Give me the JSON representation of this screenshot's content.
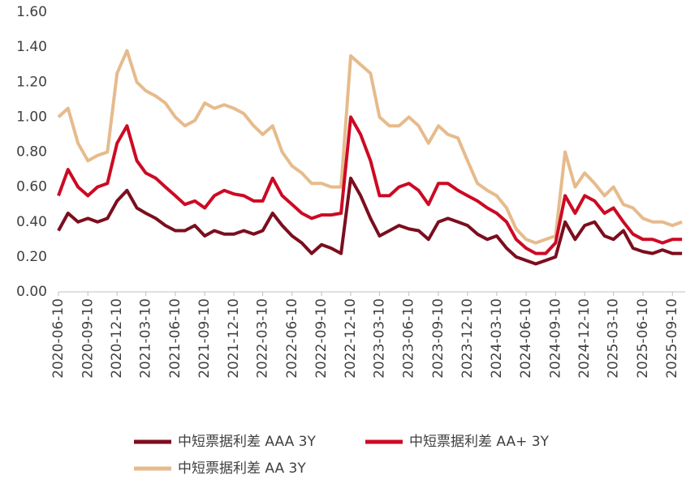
{
  "chart_data": {
    "type": "line",
    "x": [
      "2020-06-10",
      "2020-07-10",
      "2020-08-10",
      "2020-09-10",
      "2020-10-10",
      "2020-11-10",
      "2020-12-10",
      "2021-01-10",
      "2021-02-10",
      "2021-03-10",
      "2021-04-10",
      "2021-05-10",
      "2021-06-10",
      "2021-07-10",
      "2021-08-10",
      "2021-09-10",
      "2021-10-10",
      "2021-11-10",
      "2021-12-10",
      "2022-01-10",
      "2022-02-10",
      "2022-03-10",
      "2022-04-10",
      "2022-05-10",
      "2022-06-10",
      "2022-07-10",
      "2022-08-10",
      "2022-09-10",
      "2022-10-10",
      "2022-11-10",
      "2022-12-10",
      "2023-01-10",
      "2023-02-10",
      "2023-03-10",
      "2023-04-10",
      "2023-05-10",
      "2023-06-10",
      "2023-07-10",
      "2023-08-10",
      "2023-09-10",
      "2023-10-10",
      "2023-11-10",
      "2023-12-10",
      "2024-01-10",
      "2024-02-10",
      "2024-03-10",
      "2024-04-10",
      "2024-05-10",
      "2024-06-10",
      "2024-07-10",
      "2024-08-10",
      "2024-09-10",
      "2024-10-10",
      "2024-11-10",
      "2024-12-10",
      "2025-01-10",
      "2025-02-10",
      "2025-03-10",
      "2025-04-10",
      "2025-05-10",
      "2025-06-10",
      "2025-07-10",
      "2025-08-10",
      "2025-09-10",
      "2025-10-10"
    ],
    "series": [
      {
        "name": "中短票据利差 AAA 3Y",
        "color": "#7b0e1e",
        "values": [
          0.35,
          0.45,
          0.4,
          0.42,
          0.4,
          0.42,
          0.52,
          0.58,
          0.48,
          0.45,
          0.42,
          0.38,
          0.35,
          0.35,
          0.38,
          0.32,
          0.35,
          0.33,
          0.33,
          0.35,
          0.33,
          0.35,
          0.45,
          0.38,
          0.32,
          0.28,
          0.22,
          0.27,
          0.25,
          0.22,
          0.65,
          0.55,
          0.42,
          0.32,
          0.35,
          0.38,
          0.36,
          0.35,
          0.3,
          0.4,
          0.42,
          0.4,
          0.38,
          0.33,
          0.3,
          0.32,
          0.25,
          0.2,
          0.18,
          0.16,
          0.18,
          0.2,
          0.4,
          0.3,
          0.38,
          0.4,
          0.32,
          0.3,
          0.35,
          0.25,
          0.23,
          0.22,
          0.24,
          0.22,
          0.22
        ]
      },
      {
        "name": "中短票据利差 AA+ 3Y",
        "color": "#cc0a24",
        "values": [
          0.55,
          0.7,
          0.6,
          0.55,
          0.6,
          0.62,
          0.85,
          0.95,
          0.75,
          0.68,
          0.65,
          0.6,
          0.55,
          0.5,
          0.52,
          0.48,
          0.55,
          0.58,
          0.56,
          0.55,
          0.52,
          0.52,
          0.65,
          0.55,
          0.5,
          0.45,
          0.42,
          0.44,
          0.44,
          0.45,
          1.0,
          0.9,
          0.75,
          0.55,
          0.55,
          0.6,
          0.62,
          0.58,
          0.5,
          0.62,
          0.62,
          0.58,
          0.55,
          0.52,
          0.48,
          0.45,
          0.4,
          0.3,
          0.25,
          0.22,
          0.22,
          0.28,
          0.55,
          0.45,
          0.55,
          0.52,
          0.45,
          0.48,
          0.4,
          0.33,
          0.3,
          0.3,
          0.28,
          0.3,
          0.3
        ]
      },
      {
        "name": "中短票据利差 AA 3Y",
        "color": "#e6bb8c",
        "values": [
          1.0,
          1.05,
          0.85,
          0.75,
          0.78,
          0.8,
          1.25,
          1.38,
          1.2,
          1.15,
          1.12,
          1.08,
          1.0,
          0.95,
          0.98,
          1.08,
          1.05,
          1.07,
          1.05,
          1.02,
          0.95,
          0.9,
          0.95,
          0.8,
          0.72,
          0.68,
          0.62,
          0.62,
          0.6,
          0.6,
          1.35,
          1.3,
          1.25,
          1.0,
          0.95,
          0.95,
          1.0,
          0.95,
          0.85,
          0.95,
          0.9,
          0.88,
          0.75,
          0.62,
          0.58,
          0.55,
          0.48,
          0.36,
          0.3,
          0.28,
          0.3,
          0.32,
          0.8,
          0.6,
          0.68,
          0.62,
          0.55,
          0.6,
          0.5,
          0.48,
          0.42,
          0.4,
          0.4,
          0.38,
          0.4
        ]
      }
    ],
    "xlim": [
      "2020-06-10",
      "2025-10-20"
    ],
    "xticks": [
      "2020-06-10",
      "2020-09-10",
      "2020-12-10",
      "2021-03-10",
      "2021-06-10",
      "2021-09-10",
      "2021-12-10",
      "2022-03-10",
      "2022-06-10",
      "2022-09-10",
      "2022-12-10",
      "2023-03-10",
      "2023-06-10",
      "2023-09-10",
      "2023-12-10",
      "2024-03-10",
      "2024-06-10",
      "2024-09-10",
      "2024-12-10",
      "2025-03-10",
      "2025-06-10",
      "2025-09-10"
    ],
    "ylim": [
      0,
      1.6
    ],
    "yticks": [
      {
        "value": 0,
        "label": "0.00"
      },
      {
        "value": 0.2,
        "label": "0.20"
      },
      {
        "value": 0.4,
        "label": "0.40"
      },
      {
        "value": 0.6,
        "label": "0.60"
      },
      {
        "value": 0.8,
        "label": "0.80"
      },
      {
        "value": 1.0,
        "label": "1.00"
      },
      {
        "value": 1.2,
        "label": "1.20"
      },
      {
        "value": 1.4,
        "label": "1.40"
      },
      {
        "value": 1.6,
        "label": "1.60"
      }
    ],
    "legend": "bottom"
  }
}
